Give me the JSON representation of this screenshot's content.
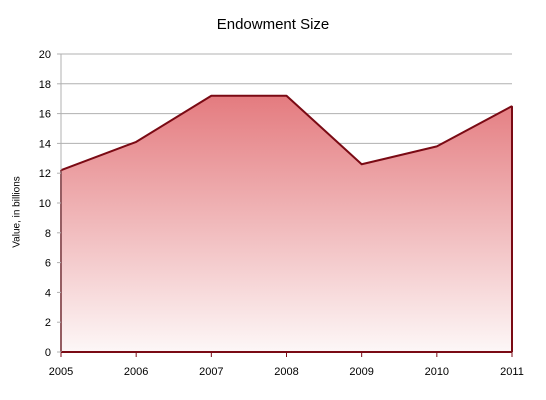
{
  "chart_data": {
    "type": "area",
    "title": "Endowment Size",
    "xlabel": "",
    "ylabel": "Value, in billions",
    "x": [
      "2005",
      "2006",
      "2007",
      "2008",
      "2009",
      "2010",
      "2011"
    ],
    "series": [
      {
        "values": [
          12.2,
          14.1,
          17.2,
          17.2,
          12.6,
          13.8,
          16.5
        ],
        "color": "#7a0a14"
      }
    ],
    "ylim": [
      0,
      20
    ],
    "yticks": [
      "0",
      "2",
      "4",
      "6",
      "8",
      "10",
      "12",
      "14",
      "16",
      "18",
      "20"
    ],
    "grid": true,
    "fill_gradient": [
      "#e47b7f",
      "#fdf7f7"
    ],
    "gridline_color": "#b0b0b0",
    "axis_color": "#7a0a14"
  }
}
